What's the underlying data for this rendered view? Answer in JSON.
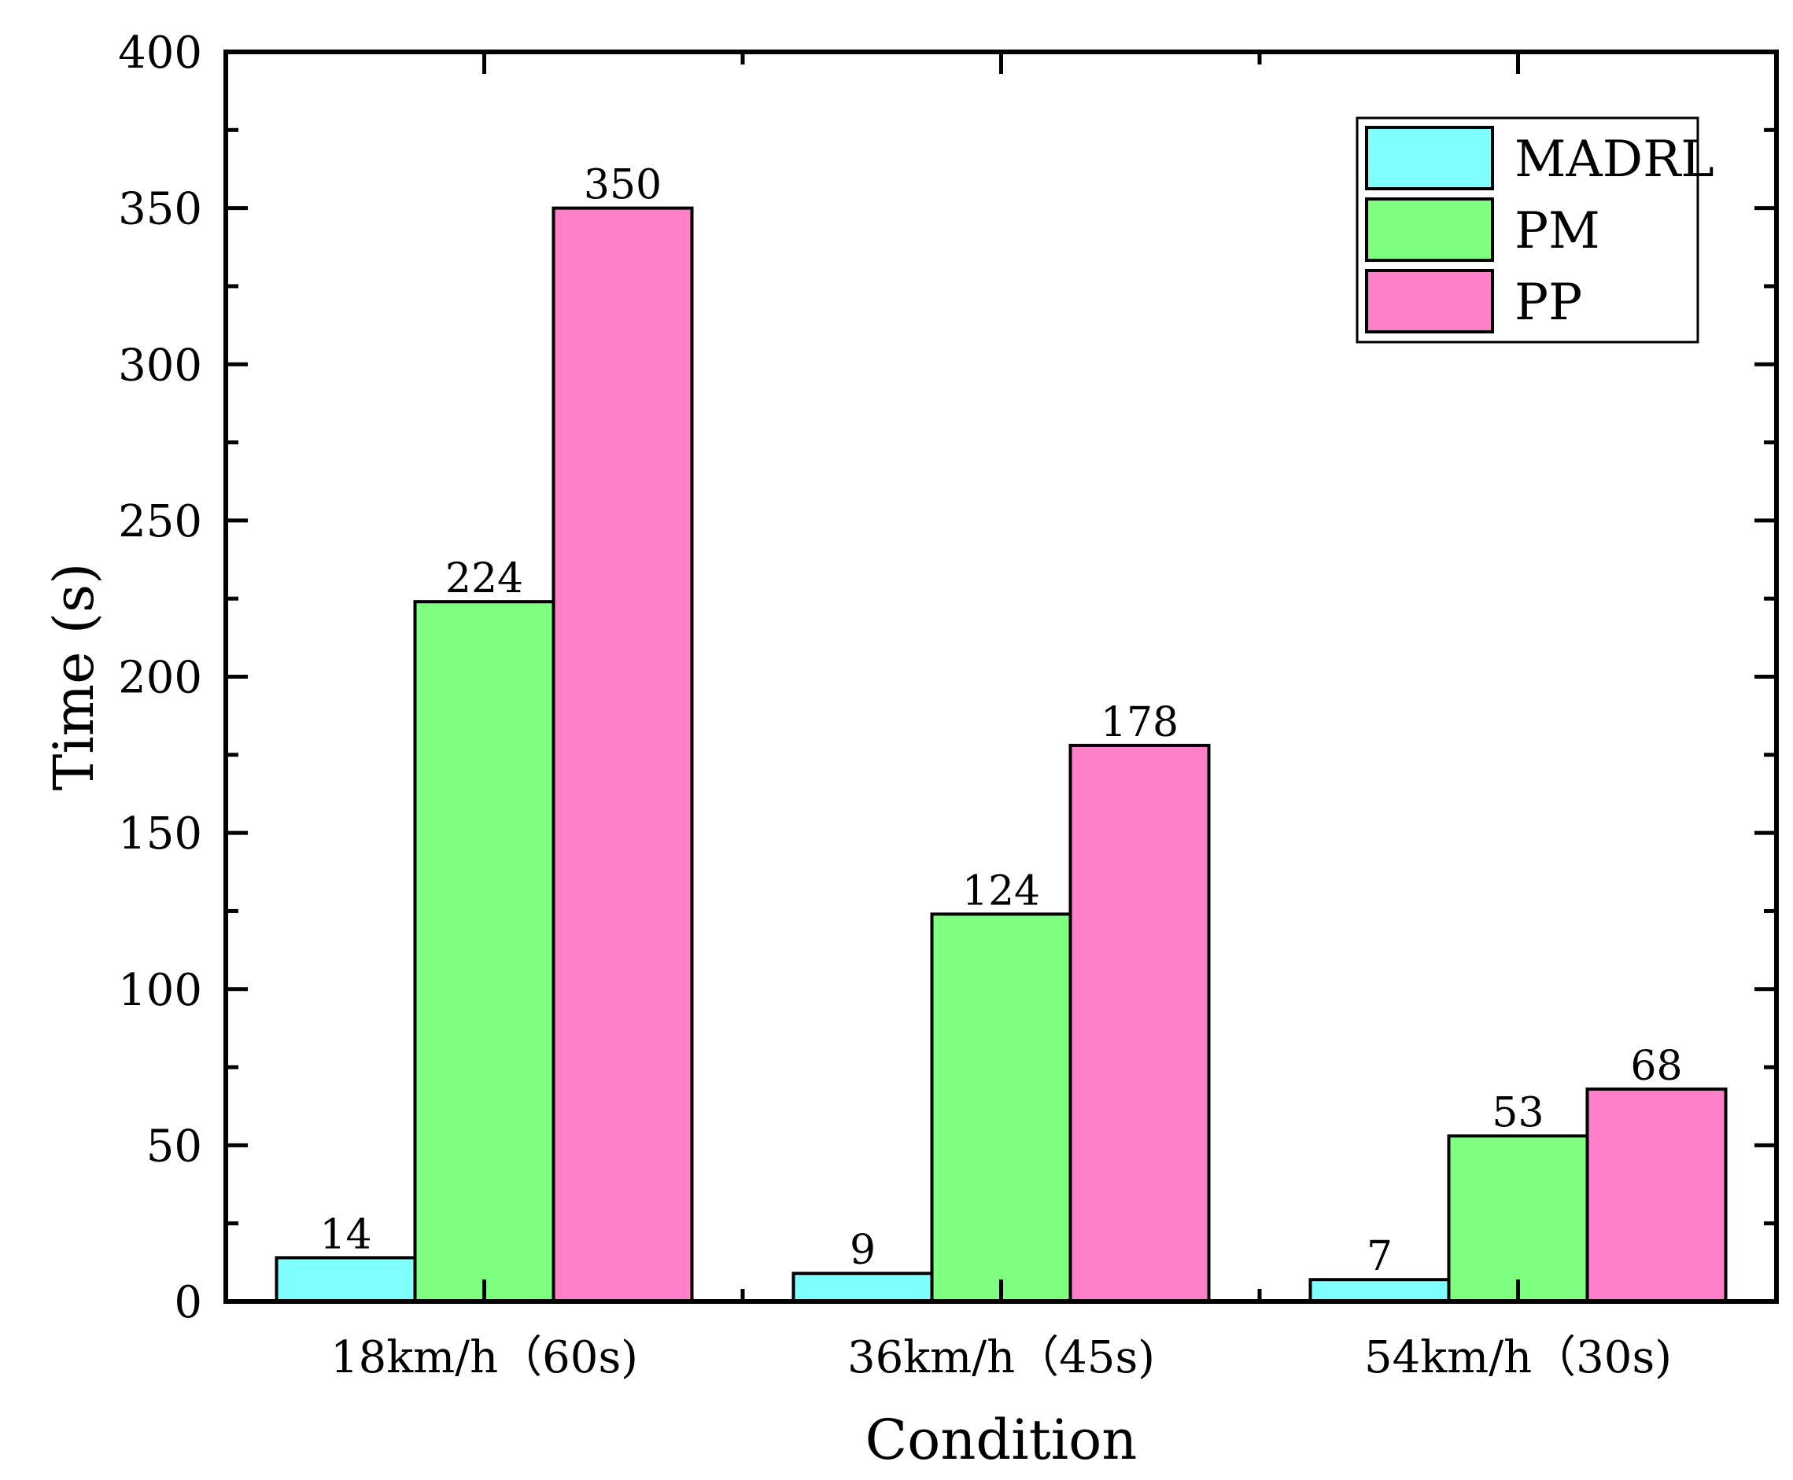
{
  "chart_data": {
    "type": "bar",
    "title": "",
    "xlabel": "Condition",
    "ylabel": "Time (s)",
    "ylim": [
      0,
      400
    ],
    "yticks": [
      0,
      50,
      100,
      150,
      200,
      250,
      300,
      350,
      400
    ],
    "categories": [
      "18km/h（60s)",
      "36km/h（45s)",
      "54km/h（30s)"
    ],
    "series": [
      {
        "name": "MADRL",
        "color": "#7fffff",
        "values": [
          14,
          9,
          7
        ]
      },
      {
        "name": "PM",
        "color": "#7fff7f",
        "values": [
          224,
          124,
          53
        ]
      },
      {
        "name": "PP",
        "color": "#ff80c8",
        "values": [
          350,
          178,
          68
        ]
      }
    ],
    "legend_position": "top-right",
    "grid": false
  }
}
